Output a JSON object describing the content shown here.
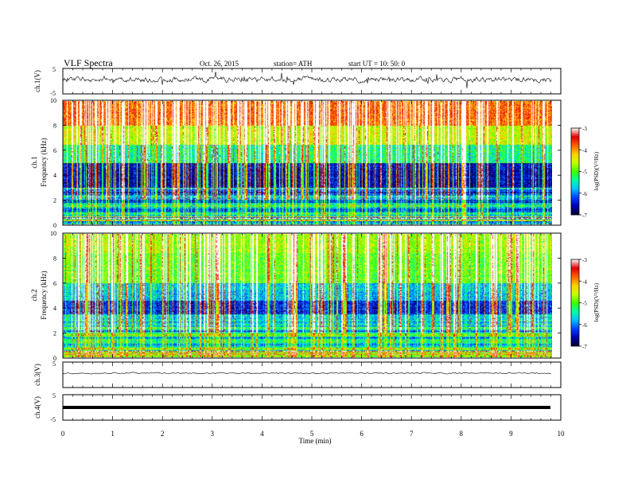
{
  "header": {
    "title": "VLF  Spectra",
    "date": "Oct. 26, 2015",
    "station": "station= ATH",
    "start": "start  UT  =   10: 50: 0"
  },
  "chart_data": {
    "type": "heatmap",
    "x": {
      "label": "Time  (min)",
      "range": [
        0,
        10
      ],
      "ticks": [
        "0",
        "1",
        "2",
        "3",
        "4",
        "5",
        "6",
        "7",
        "8",
        "9",
        "10"
      ],
      "data_end": 9.82
    },
    "panels": [
      {
        "id": "ch1-waveform",
        "type": "line",
        "ylabel": "ch.1(V)",
        "ylim": [
          -5,
          5
        ],
        "yticks": [
          "5",
          "-5"
        ],
        "level": 0,
        "amplitude": "high"
      },
      {
        "id": "ch1-spectrogram",
        "type": "heatmap",
        "ylabel_top": "ch.1",
        "ylabel": "Frequency  (kHz)",
        "ylim": [
          0,
          10
        ],
        "yticks": [
          "0",
          "2",
          "4",
          "6",
          "8",
          "10"
        ]
      },
      {
        "id": "ch2-spectrogram",
        "type": "heatmap",
        "ylabel_top": "ch.2",
        "ylabel": "Frequency  (kHz)",
        "ylim": [
          0,
          10
        ],
        "yticks": [
          "0",
          "2",
          "4",
          "6",
          "8",
          "10"
        ]
      },
      {
        "id": "ch3-waveform",
        "type": "line",
        "ylabel": "ch.3(V)",
        "ylim": [
          -5,
          5
        ],
        "yticks": [
          "5"
        ],
        "level": 0,
        "amplitude": "low"
      },
      {
        "id": "ch4-waveform",
        "type": "line",
        "ylabel": "ch.4(V)",
        "ylim": [
          -5,
          5
        ],
        "yticks": [
          "5",
          "-5"
        ],
        "level": 0,
        "amplitude": "flat-thick"
      }
    ],
    "colorbars": [
      {
        "label": "log(PSD)(V²/Hz)",
        "range": [
          -7,
          -3
        ],
        "ticks": [
          "-3",
          "-4",
          "-5",
          "-6",
          "-7"
        ]
      },
      {
        "label": "log(PSD)(V²/Hz)",
        "range": [
          -7,
          -3
        ],
        "ticks": [
          "-3",
          "-4",
          "-5",
          "-6",
          "-7"
        ]
      }
    ],
    "colormap": [
      "#000033",
      "#0000aa",
      "#0040ff",
      "#00c0ff",
      "#00ffa0",
      "#40ff00",
      "#c8ff00",
      "#ffd000",
      "#ff6000",
      "#e00000",
      "#ffffff"
    ]
  }
}
